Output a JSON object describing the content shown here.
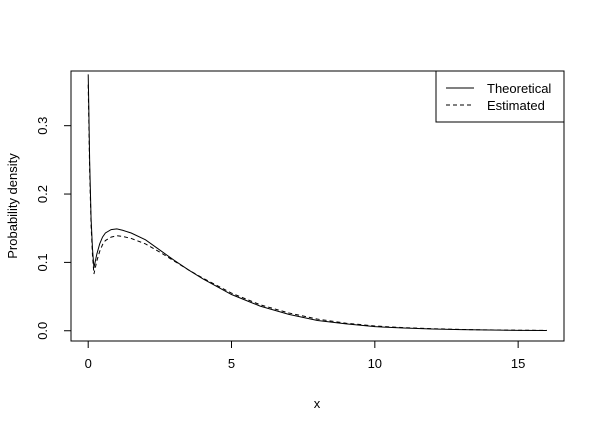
{
  "chart_data": {
    "type": "line",
    "xlabel": "x",
    "ylabel": "Probability density",
    "xlim": [
      -0.6,
      16.6
    ],
    "ylim": [
      -0.015,
      0.38
    ],
    "x_ticks": [
      0,
      5,
      10,
      15
    ],
    "x_tick_labels": [
      "0",
      "5",
      "10",
      "15"
    ],
    "y_ticks": [
      0.0,
      0.1,
      0.2,
      0.3
    ],
    "y_tick_labels": [
      "0.0",
      "0.1",
      "0.2",
      "0.3"
    ],
    "legend_position": "top-right",
    "grid": false,
    "series": [
      {
        "name": "Theoretical",
        "line_style": "solid",
        "color": "#000000",
        "x": [
          0.0,
          0.02,
          0.05,
          0.1,
          0.15,
          0.2,
          0.3,
          0.4,
          0.5,
          0.6,
          0.8,
          1.0,
          1.2,
          1.5,
          2.0,
          2.5,
          3.0,
          3.5,
          4.0,
          5.0,
          6.0,
          7.0,
          8.0,
          9.0,
          10.0,
          11.0,
          12.0,
          13.0,
          14.0,
          15.0,
          16.0
        ],
        "y": [
          0.375,
          0.33,
          0.25,
          0.165,
          0.12,
          0.092,
          0.112,
          0.127,
          0.137,
          0.143,
          0.148,
          0.149,
          0.147,
          0.143,
          0.133,
          0.118,
          0.103,
          0.089,
          0.076,
          0.053,
          0.036,
          0.024,
          0.015,
          0.01,
          0.006,
          0.004,
          0.0025,
          0.0016,
          0.001,
          0.0006,
          0.0004
        ]
      },
      {
        "name": "Estimated",
        "line_style": "dashed",
        "color": "#000000",
        "x": [
          0.0,
          0.02,
          0.05,
          0.1,
          0.15,
          0.2,
          0.3,
          0.4,
          0.5,
          0.6,
          0.8,
          1.0,
          1.2,
          1.5,
          2.0,
          2.5,
          3.0,
          3.5,
          4.0,
          5.0,
          6.0,
          7.0,
          8.0,
          9.0,
          10.0,
          11.0,
          12.0,
          13.0,
          14.0,
          15.0,
          16.0
        ],
        "y": [
          0.36,
          0.31,
          0.235,
          0.155,
          0.11,
          0.083,
          0.102,
          0.116,
          0.126,
          0.132,
          0.137,
          0.139,
          0.138,
          0.135,
          0.127,
          0.115,
          0.102,
          0.089,
          0.077,
          0.055,
          0.038,
          0.026,
          0.017,
          0.011,
          0.007,
          0.0045,
          0.003,
          0.0019,
          0.0012,
          0.0008,
          0.0005
        ]
      }
    ]
  }
}
